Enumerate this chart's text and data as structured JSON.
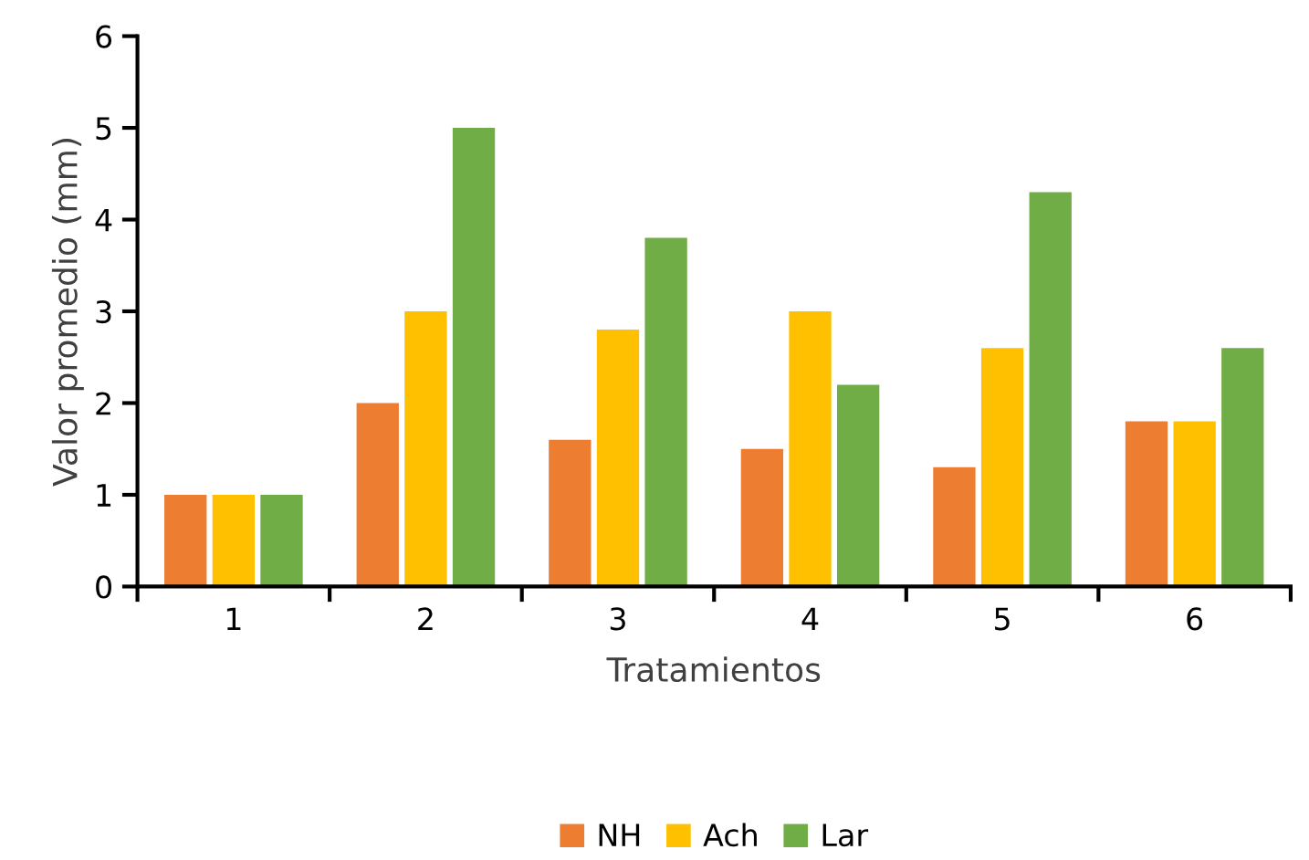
{
  "chart_data": {
    "type": "bar",
    "xlabel": "Tratamientos",
    "ylabel": "Valor promedio (mm)",
    "categories": [
      "1",
      "2",
      "3",
      "4",
      "5",
      "6"
    ],
    "series": [
      {
        "name": "NH",
        "color": "#ed7d31",
        "values": [
          1,
          2,
          1.6,
          1.5,
          1.3,
          1.8
        ]
      },
      {
        "name": "Ach",
        "color": "#ffc000",
        "values": [
          1,
          3,
          2.8,
          3,
          2.6,
          1.8
        ]
      },
      {
        "name": "Lar",
        "color": "#70ad47",
        "values": [
          1,
          5,
          3.8,
          2.2,
          4.3,
          2.6
        ]
      }
    ],
    "ylim": [
      0,
      6
    ],
    "yticks": [
      0,
      1,
      2,
      3,
      4,
      5,
      6
    ],
    "grid": false,
    "legend": "bottom"
  }
}
